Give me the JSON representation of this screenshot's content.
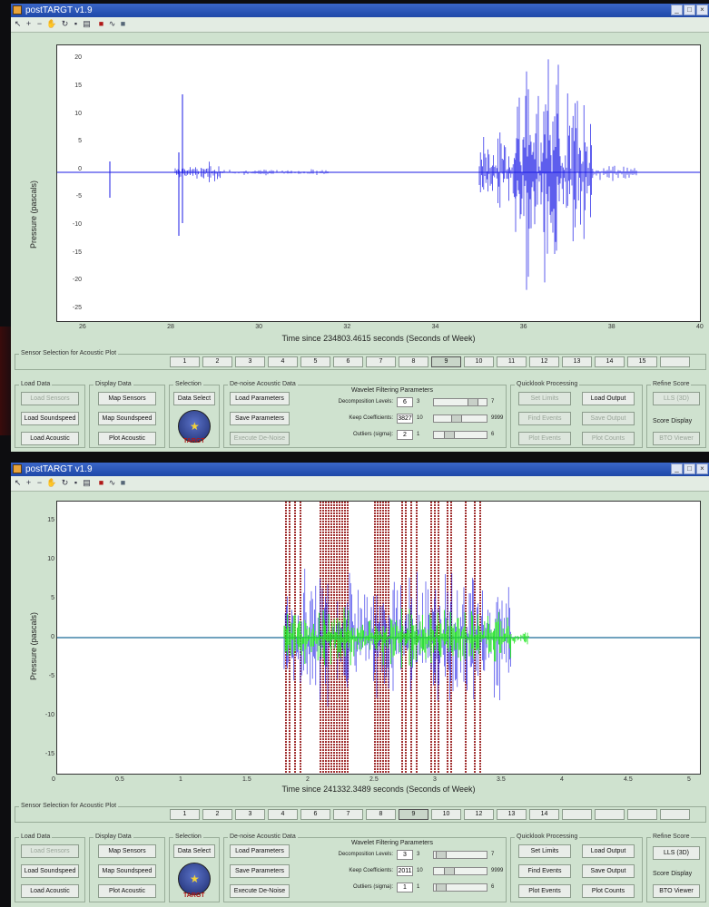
{
  "windows": [
    {
      "id": "w1",
      "title": "postTARGT v1.9",
      "plot": {
        "ylabel": "Pressure (pascals)",
        "xlabel": "Time since 234803.4615 seconds (Seconds of Week)",
        "x_ticks": [
          "26",
          "28",
          "30",
          "32",
          "34",
          "36",
          "38",
          "40"
        ],
        "y_ticks": [
          "20",
          "15",
          "10",
          "5",
          "0",
          "-5",
          "-10",
          "-15",
          "-20",
          "-25"
        ]
      },
      "sensor_title": "Sensor Selection for Acoustic Plot",
      "sensors": [
        "1",
        "2",
        "3",
        "4",
        "5",
        "6",
        "7",
        "8",
        "9",
        "10",
        "11",
        "12",
        "13",
        "14",
        "15",
        ""
      ],
      "selected_sensor": "9",
      "load_data": {
        "title": "Load Data",
        "load_sensors": "Load Sensors",
        "load_soundspeed": "Load Soundspeed",
        "load_acoustic": "Load Acoustic"
      },
      "display_data": {
        "title": "Display Data",
        "map_sensors": "Map Sensors",
        "map_soundspeed": "Map Soundspeed",
        "plot_acoustic": "Plot Acoustic"
      },
      "selection": {
        "title": "Selection",
        "data_select": "Data Select",
        "logo_text": "TARGT"
      },
      "denoise": {
        "title": "De-noise Acoustic Data",
        "load_params": "Load Parameters",
        "save_params": "Save Parameters",
        "execute": "Execute De-Noise",
        "wavelet_title": "Wavelet Filtering Parameters",
        "decomp_label": "Decomposition Levels:",
        "decomp_value": "6",
        "decomp_min": "3",
        "decomp_max": "7",
        "decomp_level": 0.75,
        "keep_label": "Keep Coefficients:",
        "keep_value": "3827",
        "keep_min": "10",
        "keep_max": "9999",
        "keep_level": 0.38,
        "outliers_label": "Outliers (sigma):",
        "outliers_value": "2",
        "outliers_min": "1",
        "outliers_max": "6",
        "outliers_level": 0.2
      },
      "quicklook": {
        "title": "Quicklook Processing",
        "set_limits": "Set Limits",
        "load_output": "Load Output",
        "find_events": "Find Events",
        "save_output": "Save Output",
        "plot_events": "Plot Events",
        "plot_counts": "Plot Counts"
      },
      "refine": {
        "title": "Refine Score",
        "lls": "LLS (3D)",
        "score_display": "Score Display",
        "bto": "BTO Viewer"
      }
    },
    {
      "id": "w2",
      "title": "postTARGT v1.9",
      "plot": {
        "ylabel": "Pressure (pascals)",
        "xlabel": "Time since 241332.3489 seconds (Seconds of Week)",
        "x_ticks": [
          "0",
          "0.5",
          "1",
          "1.5",
          "2",
          "2.5",
          "3",
          "3.5",
          "4",
          "4.5",
          "5"
        ],
        "y_ticks": [
          "15",
          "10",
          "5",
          "0",
          "-5",
          "-10",
          "-15"
        ]
      },
      "sensor_title": "Sensor Selection for Acoustic Plot",
      "sensors": [
        "1",
        "2",
        "3",
        "4",
        "6",
        "7",
        "8",
        "9",
        "10",
        "12",
        "13",
        "14",
        "",
        "",
        "",
        ""
      ],
      "selected_sensor": "9",
      "load_data": {
        "title": "Load Data",
        "load_sensors": "Load Sensors",
        "load_soundspeed": "Load Soundspeed",
        "load_acoustic": "Load Acoustic"
      },
      "display_data": {
        "title": "Display Data",
        "map_sensors": "Map Sensors",
        "map_soundspeed": "Map Soundspeed",
        "plot_acoustic": "Plot Acoustic"
      },
      "selection": {
        "title": "Selection",
        "data_select": "Data Select",
        "logo_text": "TARGT"
      },
      "denoise": {
        "title": "De-noise Acoustic Data",
        "load_params": "Load Parameters",
        "save_params": "Save Parameters",
        "execute": "Execute De-Noise",
        "wavelet_title": "Wavelet Filtering Parameters",
        "decomp_label": "Decomposition Levels:",
        "decomp_value": "3",
        "decomp_min": "3",
        "decomp_max": "7",
        "decomp_level": 0.0,
        "keep_label": "Keep Coefficients:",
        "keep_value": "2011",
        "keep_min": "10",
        "keep_max": "9999",
        "keep_level": 0.2,
        "outliers_label": "Outliers (sigma):",
        "outliers_value": "1",
        "outliers_min": "1",
        "outliers_max": "6",
        "outliers_level": 0.0
      },
      "quicklook": {
        "title": "Quicklook Processing",
        "set_limits": "Set Limits",
        "load_output": "Load Output",
        "find_events": "Find Events",
        "save_output": "Save Output",
        "plot_events": "Plot Events",
        "plot_counts": "Plot Counts"
      },
      "refine": {
        "title": "Refine Score",
        "lls": "LLS (3D)",
        "score_display": "Score Display",
        "bto": "BTO Viewer"
      }
    }
  ],
  "colors": {
    "trace_blue": "#1a1ae6",
    "trace_green": "#1ee61e",
    "event_red": "#8b0000",
    "panel_bg": "#cfe2cf",
    "titlebar": "#2a56b8"
  }
}
